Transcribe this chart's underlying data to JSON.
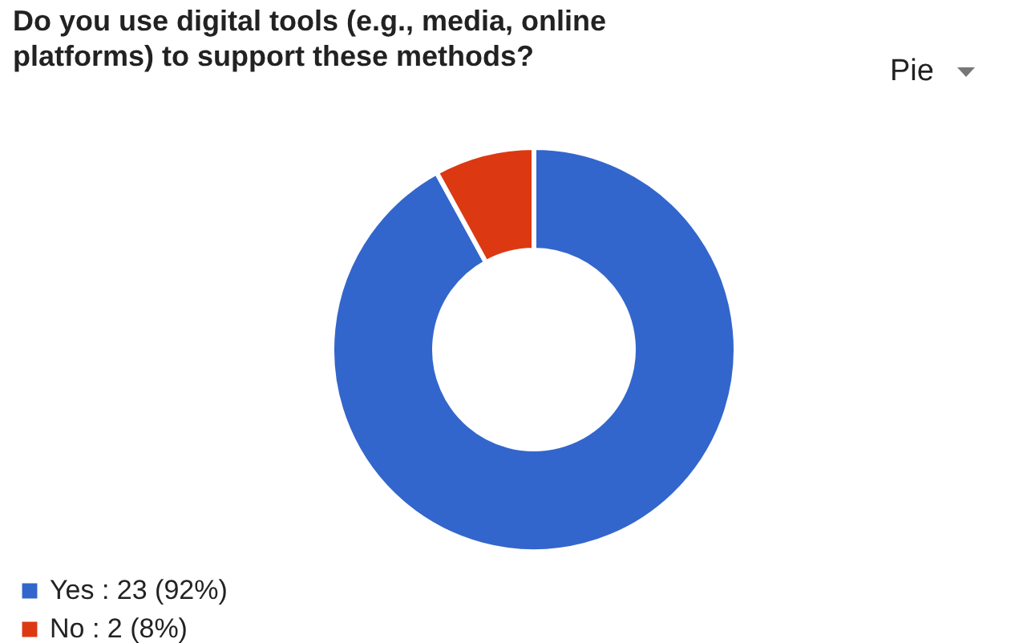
{
  "chart_data": {
    "type": "donut",
    "title": "Do you use digital tools (e.g., media, online platforms) to support these methods?",
    "categories": [
      "Yes : 23 (92%)",
      "No : 2 (8%)"
    ],
    "values": [
      23,
      2
    ],
    "colors": [
      "#3366cc",
      "#dc3912"
    ],
    "legend": "bottom left",
    "annotations": [
      "Pie"
    ]
  }
}
